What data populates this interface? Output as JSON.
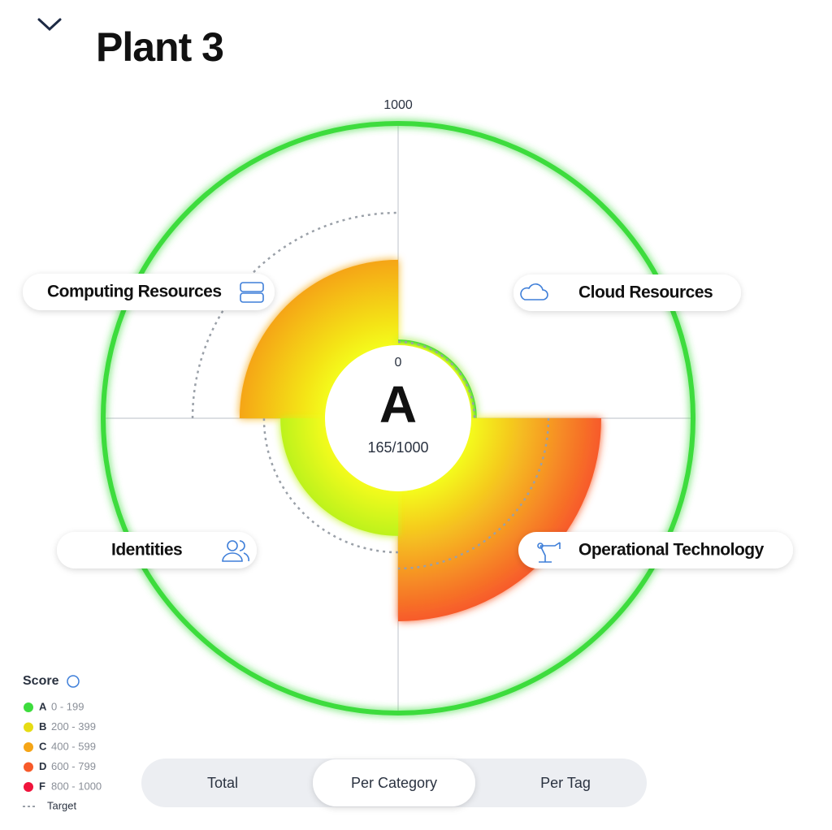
{
  "header": {
    "title": "Plant 3"
  },
  "chart_data": {
    "type": "polar-quadrant",
    "categories": [
      "Computing Resources",
      "Cloud Resources",
      "Operational Technology",
      "Identities"
    ],
    "values": [
      385,
      25,
      586,
      201
    ],
    "targets": [
      597,
      15,
      348,
      275
    ],
    "colors": [
      "#f5a516",
      "#3ddc3d",
      "#f75a2a",
      "#bdf21a"
    ],
    "ring_color": "#3ddc3d",
    "rlim": [
      0,
      1000
    ],
    "rticks": [
      0,
      1000
    ],
    "grade": "A",
    "score_text": "165/1000"
  },
  "legend": {
    "title": "Score",
    "items": [
      {
        "grade": "A",
        "range": "0 - 199",
        "color": "#3ddc3d"
      },
      {
        "grade": "B",
        "range": "200 - 399",
        "color": "#e6dc14"
      },
      {
        "grade": "C",
        "range": "400 - 599",
        "color": "#f5a516"
      },
      {
        "grade": "D",
        "range": "600 - 799",
        "color": "#f75a2a"
      },
      {
        "grade": "F",
        "range": "800 - 1000",
        "color": "#f0143c"
      }
    ],
    "target_label": "Target"
  },
  "tabs": {
    "items": [
      "Total",
      "Per Category",
      "Per Tag"
    ],
    "selected": 1
  }
}
